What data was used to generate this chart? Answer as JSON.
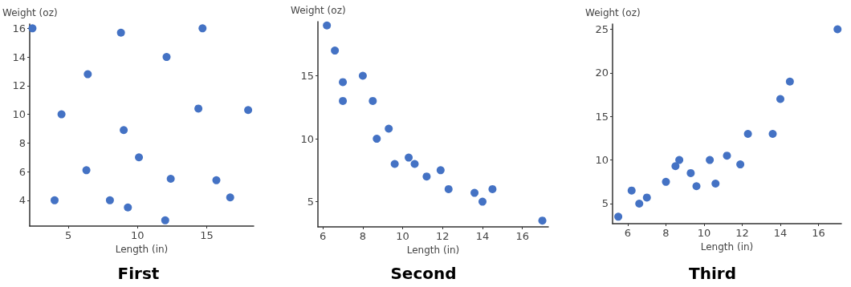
{
  "chart_data": [
    {
      "type": "scatter",
      "title": "First",
      "xlabel": "Length (in)",
      "ylabel": "Weight (oz)",
      "xlim": [
        2.2,
        18.4
      ],
      "xticks": [
        5,
        10,
        15
      ],
      "ylim": [
        2.2,
        16.3
      ],
      "yticks": [
        4,
        6,
        8,
        10,
        12,
        14,
        16
      ],
      "marker": "circle",
      "series": [
        {
          "color": "#4472c4",
          "x": [
            2.4,
            8.8,
            14.7,
            12.1,
            6.4,
            14.4,
            18.0,
            4.5,
            9.0,
            10.1,
            6.3,
            12.4,
            15.7,
            16.7,
            4.0,
            8.0,
            9.3,
            12.0
          ],
          "values": [
            16,
            15.7,
            16,
            14,
            12.8,
            10.4,
            10.3,
            10,
            8.9,
            7.0,
            6.1,
            5.5,
            5.4,
            4.2,
            4,
            4,
            3.5,
            2.6
          ]
        }
      ]
    },
    {
      "type": "scatter",
      "title": "Second",
      "xlabel": "Length (in)",
      "ylabel": "Weight (oz)",
      "xlim": [
        5.75,
        17.3
      ],
      "xticks": [
        6,
        8,
        10,
        12,
        14,
        16
      ],
      "ylim": [
        3,
        19.3
      ],
      "yticks": [
        5,
        10,
        15
      ],
      "marker": "circle",
      "series": [
        {
          "color": "#4472c4",
          "x": [
            6.2,
            6.6,
            7.0,
            7.0,
            8.0,
            8.5,
            9.3,
            8.7,
            9.6,
            10.3,
            10.6,
            11.2,
            11.9,
            12.3,
            13.6,
            14.0,
            14.5,
            17.0
          ],
          "values": [
            19,
            17,
            14.5,
            13,
            15,
            13,
            10.8,
            10,
            8,
            8.5,
            8,
            7,
            7.5,
            6,
            5.7,
            5,
            6,
            3.5
          ]
        }
      ]
    },
    {
      "type": "scatter",
      "title": "Third",
      "xlabel": "Length (in)",
      "ylabel": "Weight (oz)",
      "xlim": [
        5.2,
        17.2
      ],
      "xticks": [
        6,
        8,
        10,
        12,
        14,
        16
      ],
      "ylim": [
        2.7,
        25.6
      ],
      "yticks": [
        5,
        10,
        15,
        20,
        25
      ],
      "marker": "circle",
      "series": [
        {
          "color": "#4472c4",
          "x": [
            5.5,
            6.2,
            6.6,
            7.0,
            8.0,
            8.5,
            8.7,
            9.3,
            9.6,
            10.3,
            10.6,
            11.2,
            11.9,
            12.3,
            13.6,
            14.0,
            14.5,
            17.0
          ],
          "values": [
            3.5,
            6.5,
            5,
            5.7,
            7.5,
            9.3,
            10,
            8.5,
            7,
            10,
            7.3,
            10.5,
            9.5,
            13,
            13,
            17,
            19,
            25
          ]
        }
      ]
    }
  ]
}
